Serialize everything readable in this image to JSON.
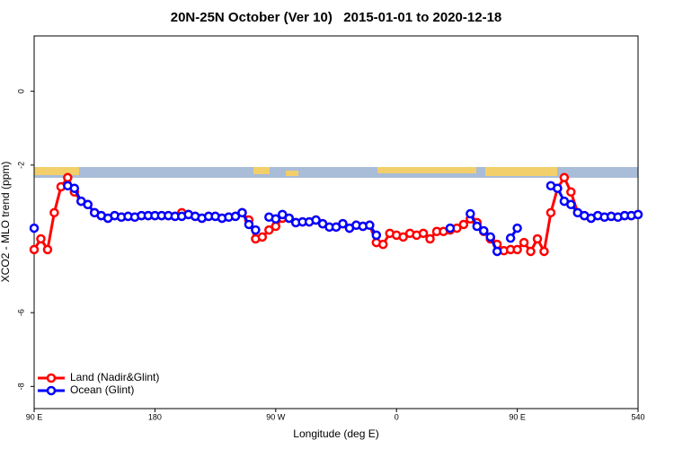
{
  "chart_data": {
    "type": "line",
    "title": "20N-25N October (Ver 10)   2015-01-01 to 2020-12-18",
    "x_label": "Longitude (deg E)",
    "y_label": "XCO2 - MLO trend (ppm)",
    "xlim": [
      90,
      540
    ],
    "ylim": [
      -8.6,
      1.5
    ],
    "xticks": [
      {
        "value": 90,
        "label": "90 E"
      },
      180,
      {
        "value": 270,
        "label": "90 W"
      },
      {
        "value": 360,
        "label": "0"
      },
      {
        "value": 450,
        "label": "90 E"
      },
      540
    ],
    "yticks": [
      0,
      -2,
      -6,
      -8
    ],
    "legend": "bottom-left",
    "x": [
      90,
      95,
      100,
      105,
      110,
      115,
      120,
      125,
      130,
      135,
      140,
      145,
      150,
      155,
      160,
      165,
      170,
      175,
      180,
      185,
      190,
      195,
      200,
      205,
      210,
      215,
      220,
      225,
      230,
      235,
      240,
      245,
      250,
      255,
      260,
      265,
      270,
      275,
      280,
      285,
      290,
      295,
      300,
      305,
      310,
      315,
      320,
      325,
      330,
      335,
      340,
      345,
      350,
      355,
      360,
      365,
      370,
      375,
      380,
      385,
      390,
      395,
      400,
      405,
      410,
      415,
      420,
      425,
      430,
      435,
      440,
      445,
      450,
      455,
      460,
      465,
      470,
      475,
      480,
      485,
      490,
      495,
      500,
      505,
      510,
      515,
      520,
      525,
      530,
      535,
      540
    ],
    "series": [
      {
        "name": "Land (Nadir&Glint)",
        "color": "#ff0000",
        "values": [
          -4.29,
          -4.0,
          -4.29,
          -3.29,
          -2.59,
          -2.34,
          -2.73,
          -2.98,
          -3.07,
          -3.29,
          -3.37,
          -3.44,
          -3.37,
          -3.41,
          -3.39,
          -3.41,
          -3.37,
          -3.37,
          -3.37,
          -3.37,
          -3.37,
          -3.39,
          -3.29,
          -3.34,
          -3.39,
          -3.44,
          -3.39,
          -3.39,
          -3.44,
          -3.41,
          -3.39,
          -3.29,
          -3.49,
          -4.0,
          -3.95,
          -3.76,
          -3.66,
          -3.44,
          -3.44,
          -3.56,
          -3.54,
          -3.54,
          -3.49,
          -3.59,
          -3.68,
          -3.68,
          -3.59,
          -3.71,
          -3.63,
          -3.66,
          -3.63,
          -4.1,
          -4.15,
          -3.85,
          -3.9,
          -3.95,
          -3.85,
          -3.9,
          -3.85,
          -4.0,
          -3.8,
          -3.8,
          -3.76,
          -3.71,
          -3.61,
          -3.46,
          -3.56,
          -3.8,
          -4.0,
          -4.15,
          -4.32,
          -4.29,
          -4.29,
          -4.1,
          -4.34,
          -4.0,
          -4.34,
          -3.29,
          -2.63,
          -2.34,
          -2.73,
          -3.29,
          -3.37,
          -3.44,
          -3.37,
          -3.41,
          -3.39,
          -3.41,
          -3.37,
          -3.37,
          -3.34
        ]
      },
      {
        "name": "Ocean (Glint)",
        "color": "#0000ff",
        "values": [
          -3.71,
          null,
          null,
          null,
          null,
          -2.56,
          -2.63,
          -2.98,
          -3.07,
          -3.29,
          -3.37,
          -3.44,
          -3.37,
          -3.41,
          -3.39,
          -3.41,
          -3.37,
          -3.37,
          -3.37,
          -3.37,
          -3.37,
          -3.39,
          -3.39,
          -3.34,
          -3.39,
          -3.44,
          -3.39,
          -3.39,
          -3.44,
          -3.41,
          -3.39,
          -3.29,
          -3.61,
          -3.76,
          null,
          -3.41,
          -3.46,
          -3.34,
          -3.44,
          -3.56,
          -3.54,
          -3.54,
          -3.49,
          -3.59,
          -3.68,
          -3.68,
          -3.59,
          -3.71,
          -3.63,
          -3.66,
          -3.63,
          -3.9,
          null,
          null,
          null,
          null,
          null,
          null,
          null,
          null,
          null,
          null,
          -3.71,
          null,
          null,
          -3.32,
          -3.66,
          -3.78,
          -3.95,
          -4.34,
          null,
          -3.98,
          -3.71,
          null,
          null,
          null,
          null,
          -2.56,
          -2.63,
          -2.98,
          -3.07,
          -3.29,
          -3.37,
          -3.44,
          -3.37,
          -3.41,
          -3.39,
          -3.41,
          -3.37,
          -3.37,
          -3.34
        ]
      }
    ]
  }
}
